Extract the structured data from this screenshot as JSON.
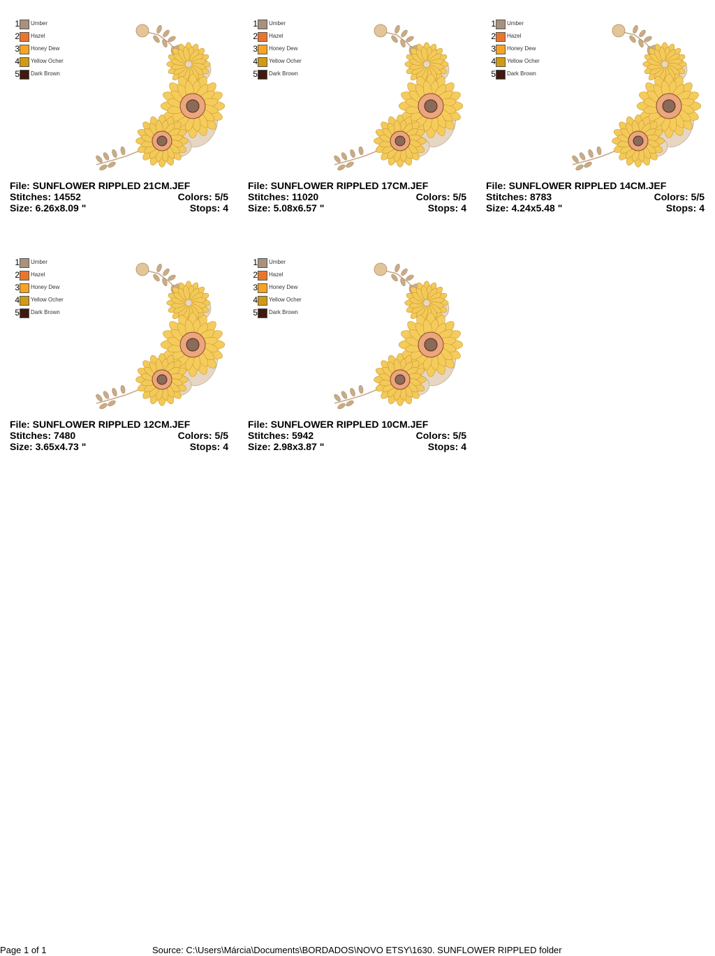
{
  "cards": [
    {
      "palette": [
        {
          "number": 1,
          "name": "Umber",
          "color": "#a8927c"
        },
        {
          "number": 2,
          "name": "Hazel",
          "color": "#e8762d"
        },
        {
          "number": 3,
          "name": "Honey Dew",
          "color": "#f5a523"
        },
        {
          "number": 4,
          "name": "Yellow Ocher",
          "color": "#cf9b16"
        },
        {
          "number": 5,
          "name": "Dark Brown",
          "color": "#3e1a10"
        }
      ],
      "file": "File: SUNFLOWER RIPPLED 21CM.JEF",
      "stitches": "Stitches: 14552",
      "colors": "Colors: 5/5",
      "size": "Size: 6.26x8.09 \"",
      "stops": "Stops: 4"
    },
    {
      "palette": [
        {
          "number": 1,
          "name": "Umber",
          "color": "#a8927c"
        },
        {
          "number": 2,
          "name": "Hazel",
          "color": "#e8762d"
        },
        {
          "number": 3,
          "name": "Honey Dew",
          "color": "#f5a523"
        },
        {
          "number": 4,
          "name": "Yellow Ocher",
          "color": "#cf9b16"
        },
        {
          "number": 5,
          "name": "Dark Brown",
          "color": "#3e1a10"
        }
      ],
      "file": "File: SUNFLOWER RIPPLED 17CM.JEF",
      "stitches": "Stitches: 11020",
      "colors": "Colors: 5/5",
      "size": "Size: 5.08x6.57 \"",
      "stops": "Stops: 4"
    },
    {
      "palette": [
        {
          "number": 1,
          "name": "Umber",
          "color": "#a8927c"
        },
        {
          "number": 2,
          "name": "Hazel",
          "color": "#e8762d"
        },
        {
          "number": 3,
          "name": "Honey Dew",
          "color": "#f5a523"
        },
        {
          "number": 4,
          "name": "Yellow Ocher",
          "color": "#cf9b16"
        },
        {
          "number": 5,
          "name": "Dark Brown",
          "color": "#3e1a10"
        }
      ],
      "file": "File: SUNFLOWER RIPPLED 14CM.JEF",
      "stitches": "Stitches: 8783",
      "colors": "Colors: 5/5",
      "size": "Size: 4.24x5.48 \"",
      "stops": "Stops: 4"
    },
    {
      "palette": [
        {
          "number": 1,
          "name": "Umber",
          "color": "#a8927c"
        },
        {
          "number": 2,
          "name": "Hazel",
          "color": "#e8762d"
        },
        {
          "number": 3,
          "name": "Honey Dew",
          "color": "#f5a523"
        },
        {
          "number": 4,
          "name": "Yellow Ocher",
          "color": "#cf9b16"
        },
        {
          "number": 5,
          "name": "Dark Brown",
          "color": "#3e1a10"
        }
      ],
      "file": "File: SUNFLOWER RIPPLED 12CM.JEF",
      "stitches": "Stitches: 7480",
      "colors": "Colors: 5/5",
      "size": "Size: 3.65x4.73 \"",
      "stops": "Stops: 4"
    },
    {
      "palette": [
        {
          "number": 1,
          "name": "Umber",
          "color": "#a8927c"
        },
        {
          "number": 2,
          "name": "Hazel",
          "color": "#e8762d"
        },
        {
          "number": 3,
          "name": "Honey Dew",
          "color": "#f5a523"
        },
        {
          "number": 4,
          "name": "Yellow Ocher",
          "color": "#cf9b16"
        },
        {
          "number": 5,
          "name": "Dark Brown",
          "color": "#3e1a10"
        }
      ],
      "file": "File: SUNFLOWER RIPPLED 10CM.JEF",
      "stitches": "Stitches: 5942",
      "colors": "Colors: 5/5",
      "size": "Size: 2.98x3.87 \"",
      "stops": "Stops: 4"
    }
  ],
  "footer": {
    "page": "Page 1 of 1",
    "source": "Source: C:\\Users\\Márcia\\Documents\\BORDADOS\\NOVO ETSY\\1630. SUNFLOWER RIPPLED folder"
  }
}
